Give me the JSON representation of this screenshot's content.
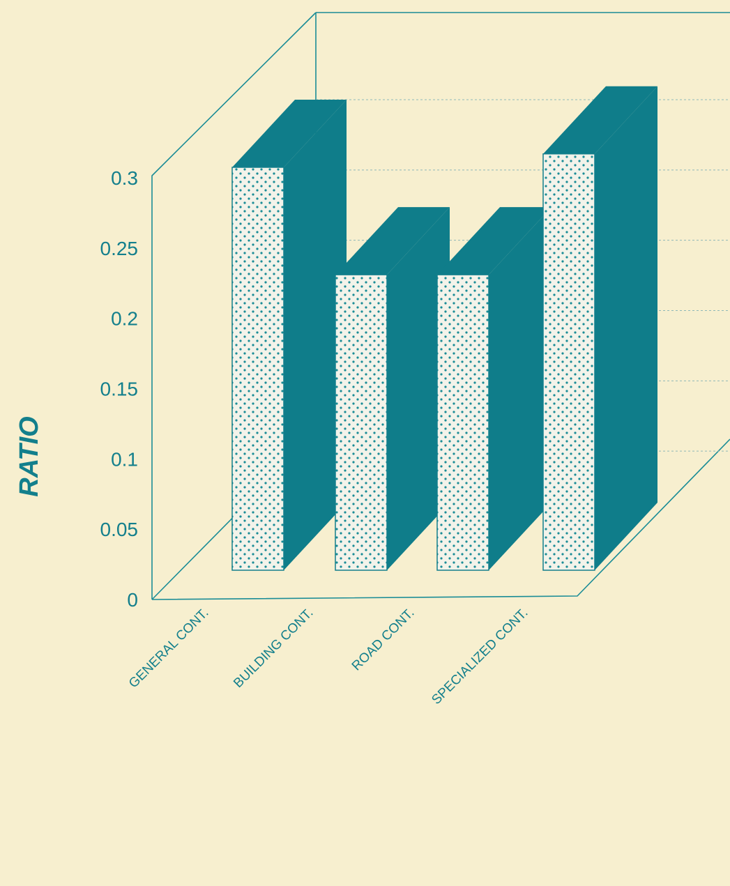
{
  "chart_data": {
    "type": "bar",
    "title": "",
    "xlabel": "",
    "ylabel": "RATIO",
    "categories": [
      "GENERAL CONT.",
      "BUILDING CONT.",
      "ROAD CONT.",
      "SPECIALIZED CONT."
    ],
    "values": [
      0.3,
      0.22,
      0.22,
      0.31
    ],
    "yticks": [
      "0",
      "0.05",
      "0.1",
      "0.15",
      "0.2",
      "0.25",
      "0.3"
    ],
    "ylim": [
      0,
      0.3
    ],
    "grid": true,
    "style": "3d",
    "colors": {
      "bar_face": "#f3f3ea",
      "bar_dots": "#1a8c96",
      "bar_side": "#0f7d8a",
      "frame": "#1a8c96",
      "text": "#137f8c",
      "background": "#f7efcf"
    }
  }
}
